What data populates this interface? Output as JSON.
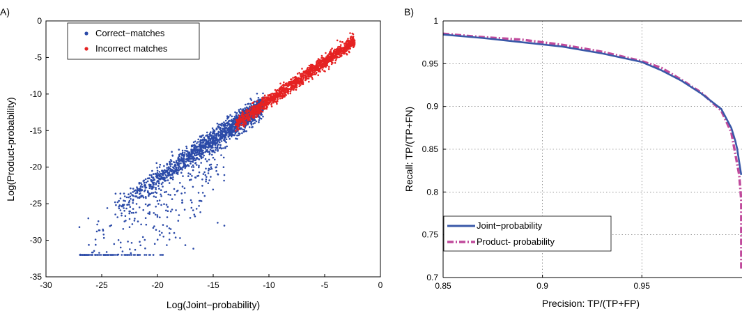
{
  "chart_data": [
    {
      "panel_label": "A)",
      "type": "scatter",
      "xlabel": "Log(Joint−probability)",
      "ylabel": "Log(Product-probability)",
      "xlim": [
        -30,
        0
      ],
      "ylim": [
        -35,
        0
      ],
      "xticks": [
        "-30",
        "-25",
        "-20",
        "-15",
        "-10",
        "-5",
        "0"
      ],
      "yticks": [
        "0",
        "-5",
        "-10",
        "-15",
        "-20",
        "-25",
        "-30",
        "-35"
      ],
      "grid": false,
      "legend_position": "top-left",
      "series": [
        {
          "name": "Correct−matches",
          "color": "#2b4aa8",
          "cluster": {
            "x_range": [
              -27,
              -10
            ],
            "relation": "y ≈ 1.07x - 0.25 with scatter; widening spread below main trend for x < -14"
          },
          "sample_points": [
            [
              -27.0,
              -28.2
            ],
            [
              -26.2,
              -27.0
            ],
            [
              -25.3,
              -27.4
            ],
            [
              -24.5,
              -25.6
            ],
            [
              -23.8,
              -24.8
            ],
            [
              -23.0,
              -23.6
            ],
            [
              -22.2,
              -23.4
            ],
            [
              -22.0,
              -31.3
            ],
            [
              -21.5,
              -22.6
            ],
            [
              -21.0,
              -22.1
            ],
            [
              -20.4,
              -21.5
            ],
            [
              -20.0,
              -26.8
            ],
            [
              -19.5,
              -20.8
            ],
            [
              -19.0,
              -20.0
            ],
            [
              -18.5,
              -29.0
            ],
            [
              -18.2,
              -19.4
            ],
            [
              -17.7,
              -18.9
            ],
            [
              -17.2,
              -18.3
            ],
            [
              -16.8,
              -25.9
            ],
            [
              -16.5,
              -17.7
            ],
            [
              -16.0,
              -17.0
            ],
            [
              -15.5,
              -16.6
            ],
            [
              -15.0,
              -16.2
            ],
            [
              -14.6,
              -27.6
            ],
            [
              -14.3,
              -15.4
            ],
            [
              -14.0,
              -28.0
            ],
            [
              -13.6,
              -14.6
            ],
            [
              -13.0,
              -14.0
            ],
            [
              -12.5,
              -13.4
            ],
            [
              -12.0,
              -13.0
            ]
          ]
        },
        {
          "name": "Incorrect matches",
          "color": "#e52222",
          "cluster": {
            "x_range": [
              -13,
              -2.3
            ],
            "relation": "y ≈ 1.07x - 0.25, tight band"
          },
          "sample_points": [
            [
              -13.0,
              -14.2
            ],
            [
              -12.5,
              -13.4
            ],
            [
              -12.0,
              -13.0
            ],
            [
              -11.5,
              -12.4
            ],
            [
              -11.0,
              -11.8
            ],
            [
              -10.5,
              -11.4
            ],
            [
              -10.0,
              -10.9
            ],
            [
              -9.5,
              -10.3
            ],
            [
              -9.0,
              -9.7
            ],
            [
              -8.5,
              -9.2
            ],
            [
              -8.0,
              -8.7
            ],
            [
              -7.5,
              -8.2
            ],
            [
              -7.0,
              -7.6
            ],
            [
              -6.5,
              -7.1
            ],
            [
              -6.0,
              -6.5
            ],
            [
              -5.5,
              -6.0
            ],
            [
              -5.0,
              -5.5
            ],
            [
              -4.5,
              -4.9
            ],
            [
              -4.0,
              -4.4
            ],
            [
              -3.5,
              -3.9
            ],
            [
              -3.0,
              -3.3
            ],
            [
              -2.5,
              -2.8
            ]
          ]
        }
      ]
    },
    {
      "panel_label": "B)",
      "type": "line",
      "xlabel": "Precision: TP/(TP+FP)",
      "ylabel": "Recall: TP/(TP+FN)",
      "xlim": [
        0.85,
        1.0
      ],
      "ylim": [
        0.7,
        1.0
      ],
      "xticks": [
        "0.85",
        "0.9",
        "0.95"
      ],
      "yticks": [
        "1",
        "0.95",
        "0.9",
        "0.85",
        "0.8",
        "0.75",
        "0.7"
      ],
      "grid": true,
      "legend_position": "bottom-left",
      "series": [
        {
          "name": "Joint−probability",
          "color": "#3a58a8",
          "style": "solid",
          "x": [
            0.85,
            0.87,
            0.89,
            0.91,
            0.93,
            0.95,
            0.96,
            0.97,
            0.98,
            0.99,
            0.995,
            0.997,
            0.998,
            0.999,
            1.0
          ],
          "y": [
            0.984,
            0.98,
            0.975,
            0.97,
            0.962,
            0.952,
            0.942,
            0.93,
            0.915,
            0.897,
            0.875,
            0.86,
            0.85,
            0.835,
            0.82
          ]
        },
        {
          "name": "Product- probability",
          "color": "#c04a9c",
          "style": "dashdot",
          "x": [
            0.85,
            0.87,
            0.89,
            0.91,
            0.93,
            0.95,
            0.96,
            0.97,
            0.98,
            0.99,
            0.995,
            0.997,
            0.999,
            1.0,
            1.0
          ],
          "y": [
            0.985,
            0.981,
            0.978,
            0.972,
            0.964,
            0.953,
            0.945,
            0.931,
            0.916,
            0.895,
            0.87,
            0.845,
            0.82,
            0.79,
            0.71
          ]
        }
      ]
    }
  ]
}
